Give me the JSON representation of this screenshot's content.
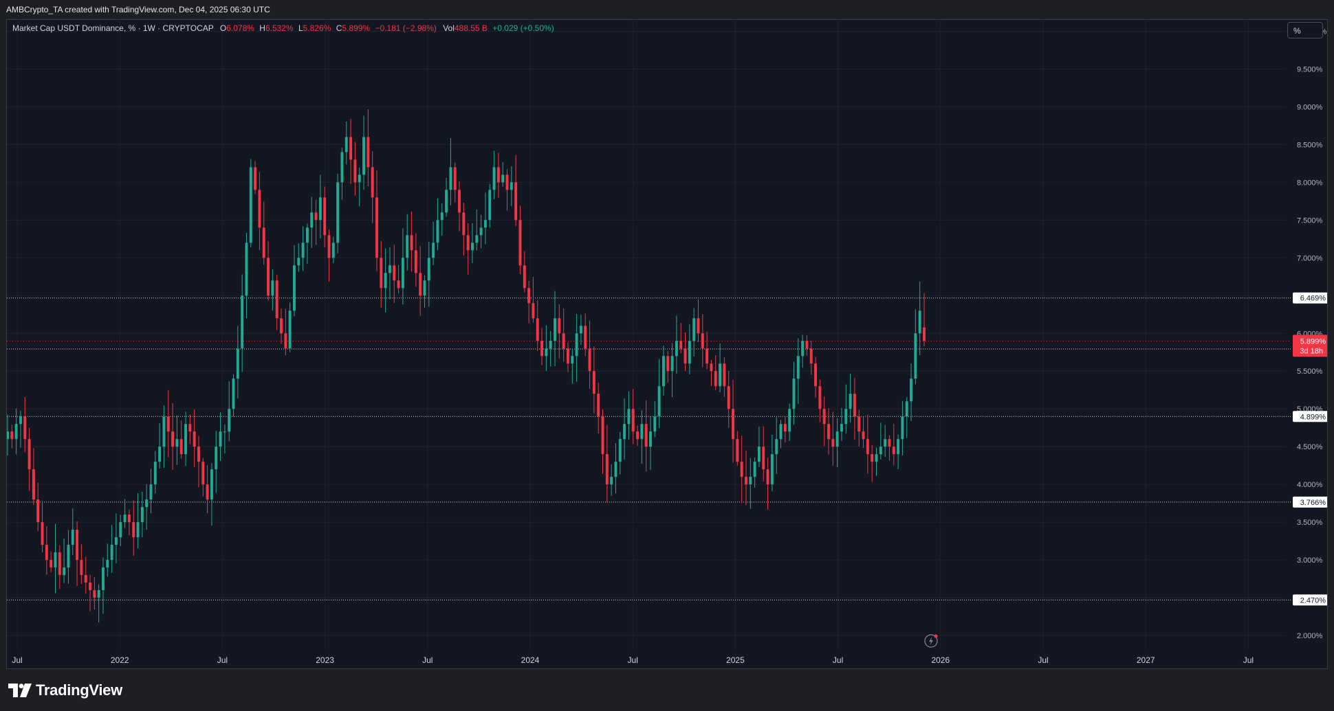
{
  "header": {
    "credit": "AMBCrypto_TA created with TradingView.com, Dec 04, 2025 06:30 UTC"
  },
  "legend": {
    "symbol": "Market Cap USDT Dominance, % · 1W · CRYPTOCAP",
    "o_label": "O",
    "o_value": "6.078%",
    "h_label": "H",
    "h_value": "6.532%",
    "l_label": "L",
    "l_value": "5.826%",
    "c_label": "C",
    "c_value": "5.899%",
    "change": "−0.181 (−2.98%)",
    "vol_label": "Vol",
    "vol_value": "488.55 B",
    "vol_change": "+0.029 (+0.50%)"
  },
  "scale_button": "%",
  "branding": {
    "name": "TradingView"
  },
  "colors": {
    "up": "#22ab94",
    "down": "#f23645",
    "background": "#131722",
    "grid": "#1e222d"
  },
  "chart_data": {
    "type": "candlestick",
    "title": "Market Cap USDT Dominance",
    "interval": "1W",
    "exchange": "CRYPTOCAP",
    "ylim": [
      1.8,
      10.15
    ],
    "y_ticks": [
      "10.000%",
      "9.500%",
      "9.000%",
      "8.500%",
      "8.000%",
      "7.500%",
      "7.000%",
      "6.500%",
      "6.000%",
      "5.500%",
      "5.000%",
      "4.500%",
      "4.000%",
      "3.500%",
      "3.000%",
      "2.500%",
      "2.000%"
    ],
    "x_ticks": [
      "Jul",
      "2022",
      "Jul",
      "2023",
      "Jul",
      "2024",
      "Jul",
      "2025",
      "Jul",
      "2026",
      "Jul",
      "2027",
      "Jul"
    ],
    "horizontal_levels": [
      {
        "value": 6.469,
        "label": "6.469%"
      },
      {
        "value": 5.793,
        "label": "5.793%"
      },
      {
        "value": 4.899,
        "label": "4.899%"
      },
      {
        "value": 3.766,
        "label": "3.766%"
      },
      {
        "value": 2.47,
        "label": "2.470%"
      }
    ],
    "last_price": {
      "value": 5.899,
      "label": "5.899%",
      "countdown": "3d 18h"
    },
    "grid": true,
    "approximate_weekly_closes": [
      4.7,
      4.6,
      4.8,
      4.9,
      4.6,
      4.2,
      3.8,
      3.5,
      3.2,
      3.0,
      2.9,
      3.1,
      2.8,
      2.9,
      3.2,
      3.4,
      3.0,
      2.8,
      2.7,
      2.6,
      2.5,
      2.6,
      2.9,
      3.0,
      3.2,
      3.3,
      3.5,
      3.6,
      3.5,
      3.3,
      3.5,
      3.7,
      3.8,
      4.0,
      4.3,
      4.5,
      4.9,
      4.7,
      4.5,
      4.6,
      4.4,
      4.8,
      4.7,
      4.5,
      4.3,
      4.0,
      3.8,
      4.2,
      4.5,
      4.7,
      4.7,
      5.0,
      5.4,
      5.8,
      6.5,
      7.2,
      8.2,
      7.9,
      7.4,
      7.0,
      6.5,
      6.7,
      6.2,
      6.0,
      5.8,
      6.3,
      6.9,
      7.0,
      7.2,
      7.4,
      7.6,
      7.5,
      7.8,
      7.3,
      7.0,
      7.2,
      8.0,
      8.4,
      8.6,
      8.3,
      8.0,
      8.1,
      8.6,
      8.2,
      7.8,
      7.0,
      6.6,
      6.8,
      6.9,
      6.7,
      6.6,
      7.0,
      7.3,
      7.1,
      6.8,
      6.5,
      6.7,
      7.0,
      7.2,
      7.5,
      7.6,
      7.9,
      8.2,
      7.9,
      7.6,
      7.3,
      7.1,
      7.2,
      7.3,
      7.4,
      7.5,
      7.9,
      8.2,
      8.0,
      8.1,
      7.9,
      8.0,
      7.5,
      6.9,
      6.6,
      6.4,
      6.2,
      5.9,
      5.7,
      5.8,
      5.9,
      6.2,
      6.0,
      5.8,
      5.6,
      5.7,
      6.0,
      6.1,
      5.8,
      5.5,
      5.2,
      4.9,
      4.4,
      4.0,
      4.1,
      4.3,
      4.6,
      4.8,
      5.0,
      4.7,
      4.6,
      4.8,
      4.5,
      4.7,
      4.9,
      5.3,
      5.7,
      5.5,
      5.7,
      5.9,
      5.8,
      5.6,
      5.9,
      6.2,
      6.0,
      5.8,
      5.6,
      5.5,
      5.3,
      5.6,
      5.3,
      5.0,
      4.6,
      4.3,
      4.1,
      4.0,
      4.1,
      4.3,
      4.5,
      4.2,
      4.0,
      4.4,
      4.6,
      4.8,
      4.7,
      5.0,
      5.4,
      5.7,
      5.9,
      5.8,
      5.6,
      5.3,
      5.0,
      4.8,
      4.6,
      4.5,
      4.7,
      4.8,
      5.0,
      5.2,
      4.9,
      4.7,
      4.6,
      4.4,
      4.3,
      4.4,
      4.5,
      4.6,
      4.5,
      4.4,
      4.6,
      4.9,
      5.1,
      5.4,
      6.0,
      6.3,
      5.9
    ],
    "ohlc_last": {
      "open": 6.078,
      "high": 6.532,
      "low": 5.826,
      "close": 5.899
    }
  }
}
